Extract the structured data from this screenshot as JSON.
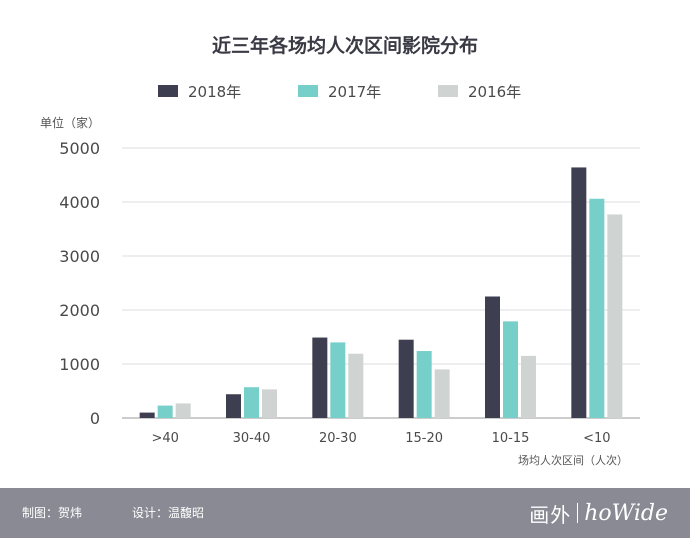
{
  "chart_data": {
    "type": "bar",
    "title": "近三年各场均人次区间影院分布",
    "ylabel": "单位（家）",
    "xlabel": "场均人次区间（人次）",
    "ylim": [
      0,
      5000
    ],
    "yticks": [
      0,
      1000,
      2000,
      3000,
      4000,
      5000
    ],
    "grid": true,
    "legend_position": "top",
    "categories": [
      ">40",
      "30-40",
      "20-30",
      "15-20",
      "10-15",
      "<10"
    ],
    "series": [
      {
        "name": "2018年",
        "color": "#3d3e50",
        "values": [
          100,
          440,
          1490,
          1450,
          2250,
          4640
        ]
      },
      {
        "name": "2017年",
        "color": "#77cfca",
        "values": [
          230,
          570,
          1400,
          1240,
          1790,
          4060
        ]
      },
      {
        "name": "2016年",
        "color": "#cfd3d2",
        "values": [
          270,
          530,
          1190,
          900,
          1150,
          3770
        ]
      }
    ]
  },
  "footer": {
    "credit_chart": "制图：贺炜",
    "credit_design": "设计：温馥昭",
    "logo_cn": "画外",
    "logo_en": "hoWide"
  }
}
